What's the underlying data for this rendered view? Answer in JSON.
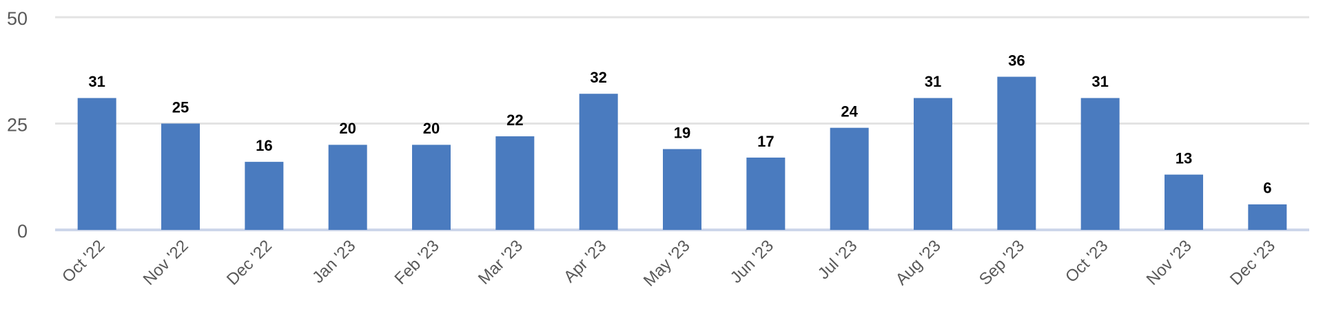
{
  "chart_data": {
    "type": "bar",
    "categories": [
      "Oct '22",
      "Nov '22",
      "Dec '22",
      "Jan '23",
      "Feb '23",
      "Mar '23",
      "Apr '23",
      "May '23",
      "Jun '23",
      "Jul '23",
      "Aug '23",
      "Sep '23",
      "Oct '23",
      "Nov '23",
      "Dec '23"
    ],
    "values": [
      31,
      25,
      16,
      20,
      20,
      22,
      32,
      19,
      17,
      24,
      31,
      36,
      31,
      13,
      6
    ],
    "color": "#4a7bbf",
    "ylim": [
      0,
      50
    ],
    "yticks": [
      0,
      25,
      50
    ],
    "grid": true
  }
}
